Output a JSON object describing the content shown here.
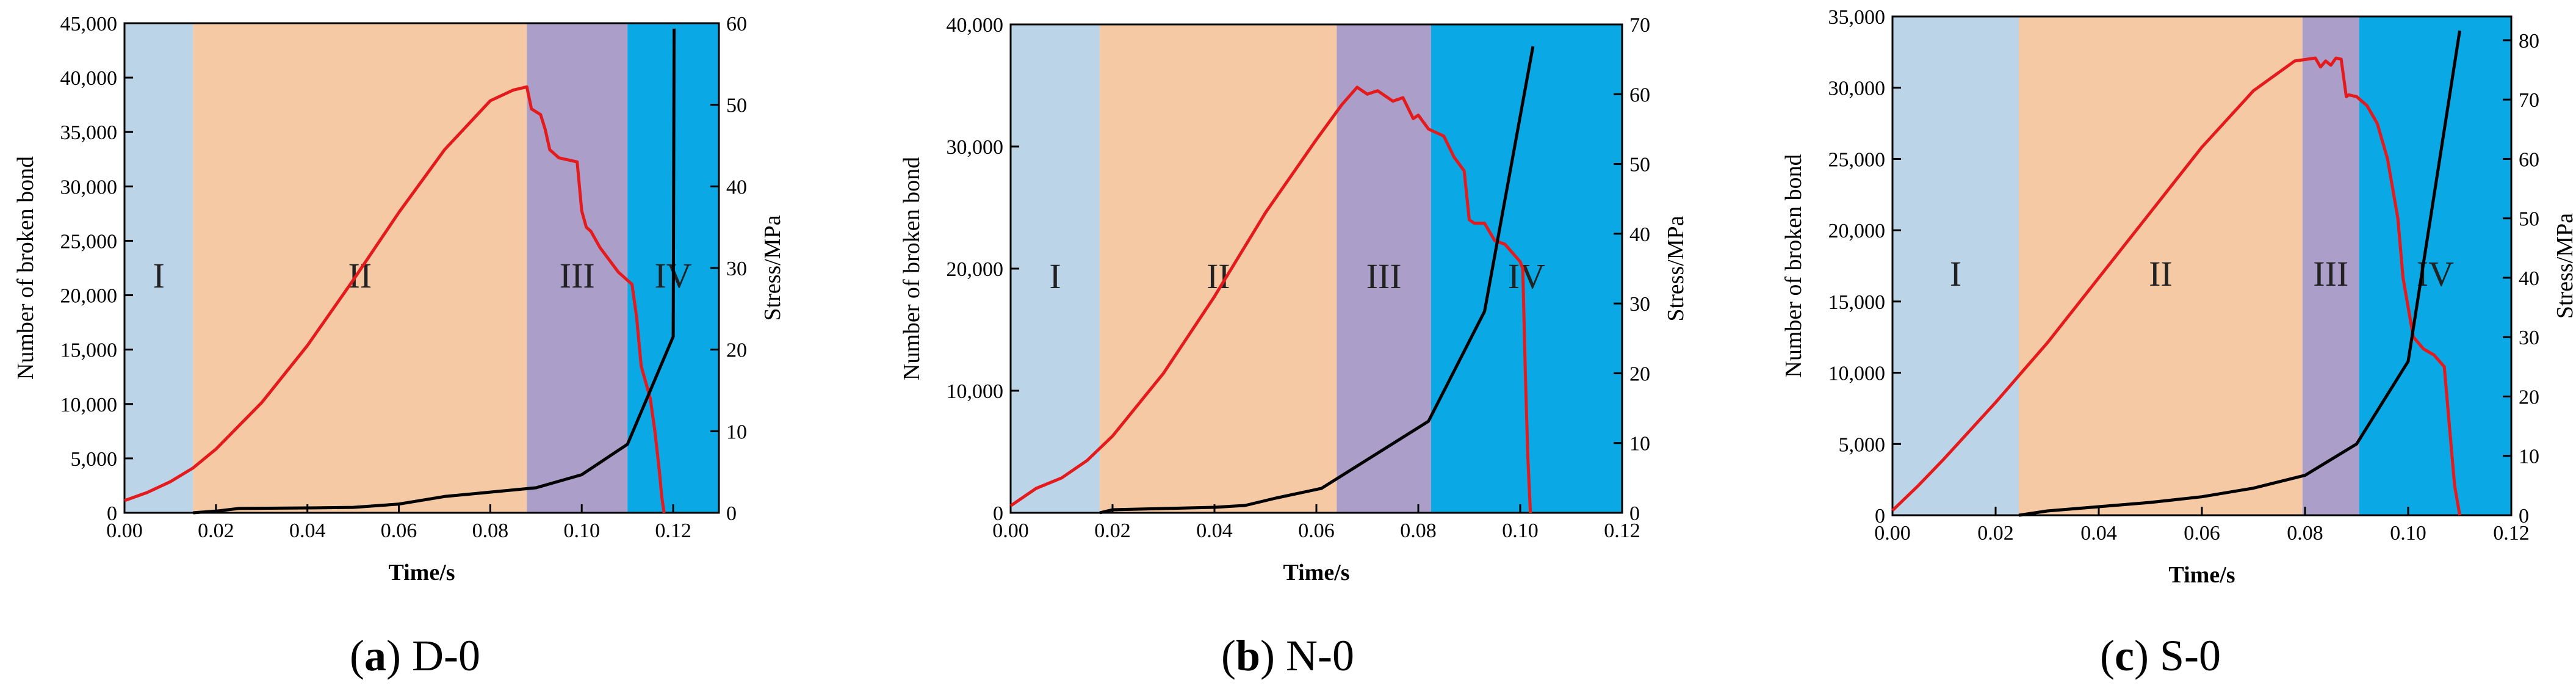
{
  "figure": {
    "panel_labels": [
      {
        "letter": "a",
        "paren_open": "(",
        "paren_close": ")",
        "name": "D-0"
      },
      {
        "letter": "b",
        "paren_open": "(",
        "paren_close": ")",
        "name": "N-0"
      },
      {
        "letter": "c",
        "paren_open": "(",
        "paren_close": ")",
        "name": "S-0"
      }
    ]
  },
  "colors": {
    "stage_I": "#bcd4e8",
    "stage_II": "#f4c9a3",
    "stage_III": "#ab9fc9",
    "stage_IV": "#0aa8e4",
    "stress_curve": "#e41a1c",
    "bond_curve": "#000000"
  },
  "chart_data": [
    {
      "type": "line",
      "id": "D-0",
      "xlabel": "Time/s",
      "ylabel_left": "Number of broken bond",
      "ylabel_right": "Stress/MPa",
      "xlim": [
        0,
        0.13
      ],
      "ylim_left": [
        0,
        45000
      ],
      "ylim_right": [
        0,
        60
      ],
      "xticks": [
        0,
        0.02,
        0.04,
        0.06,
        0.08,
        0.1,
        0.12
      ],
      "xtick_labels": [
        "0.00",
        "0.02",
        "0.04",
        "0.06",
        "0.08",
        "0.10",
        "0.12"
      ],
      "yticks_left": [
        0,
        5000,
        10000,
        15000,
        20000,
        25000,
        30000,
        35000,
        40000,
        45000
      ],
      "ytick_labels_left": [
        "0",
        "5,000",
        "10,000",
        "15,000",
        "20,000",
        "25,000",
        "30,000",
        "35,000",
        "40,000",
        "45,000"
      ],
      "yticks_right": [
        0,
        10,
        20,
        30,
        40,
        50,
        60
      ],
      "ytick_labels_right": [
        "0",
        "10",
        "20",
        "30",
        "40",
        "50",
        "60"
      ],
      "stages": [
        {
          "label": "I",
          "start": 0,
          "end": 0.015,
          "color_key": "stage_I"
        },
        {
          "label": "II",
          "start": 0.015,
          "end": 0.088,
          "color_key": "stage_II"
        },
        {
          "label": "III",
          "start": 0.088,
          "end": 0.11,
          "color_key": "stage_III"
        },
        {
          "label": "IV",
          "start": 0.11,
          "end": 0.13,
          "color_key": "stage_IV"
        }
      ],
      "series": [
        {
          "name": "Stress",
          "axis": "right",
          "color_key": "stress_curve",
          "x": [
            0,
            0.005,
            0.01,
            0.015,
            0.02,
            0.03,
            0.04,
            0.05,
            0.06,
            0.07,
            0.08,
            0.085,
            0.088,
            0.089,
            0.091,
            0.092,
            0.093,
            0.095,
            0.099,
            0.1,
            0.101,
            0.102,
            0.104,
            0.106,
            0.108,
            0.111,
            0.112,
            0.113,
            0.115,
            0.116,
            0.117,
            0.1175,
            0.118
          ],
          "values": [
            1.5,
            2.5,
            3.8,
            5.5,
            7.8,
            13.5,
            20.5,
            28.5,
            36.8,
            44.5,
            50.5,
            51.8,
            52.2,
            49.5,
            48.8,
            47.0,
            44.5,
            43.5,
            43.0,
            37.0,
            35.0,
            34.5,
            32.5,
            31.0,
            29.5,
            28.0,
            24.0,
            18.0,
            14.0,
            10.0,
            5.0,
            2.0,
            0
          ]
        },
        {
          "name": "Number of broken bond",
          "axis": "left",
          "color_key": "bond_curve",
          "x": [
            0.015,
            0.02,
            0.025,
            0.04,
            0.05,
            0.06,
            0.07,
            0.08,
            0.09,
            0.1,
            0.11,
            0.12,
            0.1202
          ],
          "values": [
            0,
            150,
            400,
            450,
            500,
            800,
            1500,
            1900,
            2300,
            3500,
            6300,
            16200,
            44500
          ]
        }
      ]
    },
    {
      "type": "line",
      "id": "N-0",
      "xlabel": "Time/s",
      "ylabel_left": "Number of broken bond",
      "ylabel_right": "Stress/MPa",
      "xlim": [
        0,
        0.12
      ],
      "ylim_left": [
        0,
        40000
      ],
      "ylim_right": [
        0,
        70
      ],
      "xticks": [
        0,
        0.02,
        0.04,
        0.06,
        0.08,
        0.1,
        0.12
      ],
      "xtick_labels": [
        "0.00",
        "0.02",
        "0.04",
        "0.06",
        "0.08",
        "0.10",
        "0.12"
      ],
      "yticks_left": [
        0,
        10000,
        20000,
        30000,
        40000
      ],
      "ytick_labels_left": [
        "0",
        "10,000",
        "20,000",
        "30,000",
        "40,000"
      ],
      "yticks_right": [
        0,
        10,
        20,
        30,
        40,
        50,
        60,
        70
      ],
      "ytick_labels_right": [
        "0",
        "10",
        "20",
        "30",
        "40",
        "50",
        "60",
        "70"
      ],
      "stages": [
        {
          "label": "I",
          "start": 0,
          "end": 0.0175,
          "color_key": "stage_I"
        },
        {
          "label": "II",
          "start": 0.0175,
          "end": 0.064,
          "color_key": "stage_II"
        },
        {
          "label": "III",
          "start": 0.064,
          "end": 0.0825,
          "color_key": "stage_III"
        },
        {
          "label": "IV",
          "start": 0.0825,
          "end": 0.12,
          "color_key": "stage_IV"
        }
      ],
      "series": [
        {
          "name": "Stress",
          "axis": "right",
          "color_key": "stress_curve",
          "x": [
            0,
            0.005,
            0.01,
            0.015,
            0.02,
            0.03,
            0.04,
            0.05,
            0.06,
            0.065,
            0.068,
            0.07,
            0.072,
            0.075,
            0.077,
            0.079,
            0.08,
            0.082,
            0.085,
            0.087,
            0.089,
            0.09,
            0.091,
            0.093,
            0.095,
            0.097,
            0.1,
            0.1005,
            0.101,
            0.1015,
            0.102
          ],
          "values": [
            1.0,
            3.5,
            5.0,
            7.5,
            11.0,
            20.0,
            31.0,
            43.0,
            53.5,
            58.5,
            61.0,
            60.0,
            60.5,
            59.0,
            59.5,
            56.5,
            57.0,
            55.0,
            54.0,
            51.0,
            49.0,
            42.0,
            41.5,
            41.5,
            39.0,
            38.5,
            36.0,
            35.0,
            20.0,
            8.0,
            0
          ]
        },
        {
          "name": "Number of broken bond",
          "axis": "left",
          "color_key": "bond_curve",
          "x": [
            0.0175,
            0.02,
            0.03,
            0.04,
            0.046,
            0.052,
            0.061,
            0.082,
            0.093,
            0.1025
          ],
          "values": [
            0,
            250,
            350,
            450,
            600,
            1200,
            2000,
            7500,
            16500,
            38200
          ]
        }
      ]
    },
    {
      "type": "line",
      "id": "S-0",
      "xlabel": "Time/s",
      "ylabel_left": "Number of broken bond",
      "ylabel_right": "Stress/MPa",
      "xlim": [
        0,
        0.12
      ],
      "ylim_left": [
        0,
        35000
      ],
      "ylim_right": [
        0,
        84
      ],
      "xticks": [
        0,
        0.02,
        0.04,
        0.06,
        0.08,
        0.1,
        0.12
      ],
      "xtick_labels": [
        "0.00",
        "0.02",
        "0.04",
        "0.06",
        "0.08",
        "0.10",
        "0.12"
      ],
      "yticks_left": [
        0,
        5000,
        10000,
        15000,
        20000,
        25000,
        30000,
        35000
      ],
      "ytick_labels_left": [
        "0",
        "5,000",
        "10,000",
        "15,000",
        "20,000",
        "25,000",
        "30,000",
        "35,000"
      ],
      "yticks_right": [
        0,
        10,
        20,
        30,
        40,
        50,
        60,
        70,
        80
      ],
      "ytick_labels_right": [
        "0",
        "10",
        "20",
        "30",
        "40",
        "50",
        "60",
        "70",
        "80"
      ],
      "stages": [
        {
          "label": "I",
          "start": 0,
          "end": 0.0245,
          "color_key": "stage_I"
        },
        {
          "label": "II",
          "start": 0.0245,
          "end": 0.0795,
          "color_key": "stage_II"
        },
        {
          "label": "III",
          "start": 0.0795,
          "end": 0.0905,
          "color_key": "stage_III"
        },
        {
          "label": "IV",
          "start": 0.0905,
          "end": 0.12,
          "color_key": "stage_IV"
        }
      ],
      "series": [
        {
          "name": "Stress",
          "axis": "right",
          "color_key": "stress_curve",
          "x": [
            0,
            0.005,
            0.01,
            0.02,
            0.03,
            0.04,
            0.05,
            0.06,
            0.07,
            0.078,
            0.082,
            0.083,
            0.084,
            0.085,
            0.086,
            0.087,
            0.088,
            0.0885,
            0.09,
            0.092,
            0.094,
            0.096,
            0.098,
            0.099,
            0.1,
            0.101,
            0.102,
            0.103,
            0.105,
            0.107,
            0.108,
            0.109,
            0.11
          ],
          "values": [
            0.8,
            5.0,
            9.5,
            19.0,
            29.0,
            40.0,
            51.0,
            62.0,
            71.5,
            76.5,
            77.0,
            75.5,
            76.5,
            75.8,
            77.0,
            76.8,
            70.5,
            70.8,
            70.5,
            69.0,
            66.0,
            60.0,
            50.0,
            40.0,
            35.0,
            30.0,
            29.0,
            28.0,
            27.0,
            25.0,
            15.0,
            5.0,
            0
          ]
        },
        {
          "name": "Number of broken bond",
          "axis": "left",
          "color_key": "bond_curve",
          "x": [
            0.0245,
            0.03,
            0.04,
            0.05,
            0.06,
            0.07,
            0.08,
            0.09,
            0.1,
            0.11
          ],
          "values": [
            0,
            300,
            600,
            900,
            1300,
            1900,
            2800,
            5000,
            10800,
            34000
          ]
        }
      ]
    }
  ]
}
